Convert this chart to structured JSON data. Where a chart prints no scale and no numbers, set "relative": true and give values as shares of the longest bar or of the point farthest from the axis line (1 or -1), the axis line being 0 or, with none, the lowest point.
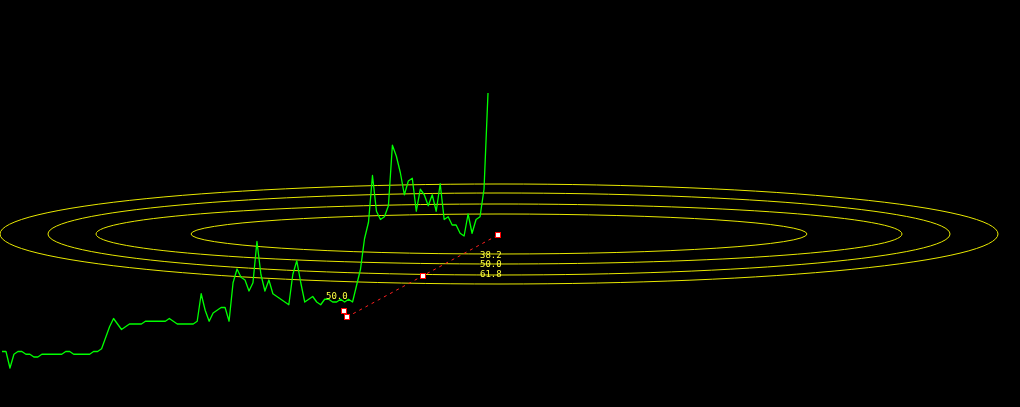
{
  "chart_data": {
    "type": "line",
    "relative": true,
    "categories": [
      null,
      null,
      null,
      null,
      null,
      null,
      null,
      null,
      null,
      null,
      null,
      null,
      null,
      null,
      null,
      null,
      null,
      null,
      null,
      null,
      null,
      null,
      null,
      null,
      null,
      null,
      null,
      null,
      null,
      null,
      null,
      null,
      null,
      null,
      null,
      null,
      null,
      null,
      null,
      null,
      null,
      null,
      null,
      null,
      null,
      null,
      null,
      null,
      null,
      null,
      null,
      null,
      null,
      null,
      null,
      null,
      null,
      null,
      null,
      null,
      null,
      null,
      null,
      null,
      null,
      null,
      null,
      null,
      null,
      null,
      null,
      null,
      null,
      null,
      null,
      null,
      null,
      null,
      null,
      null,
      null,
      null,
      null,
      null,
      null,
      null,
      null,
      null,
      null,
      null,
      null,
      null,
      null,
      null,
      null,
      null,
      null,
      null,
      null,
      null,
      null,
      null,
      null,
      null,
      null,
      null,
      null,
      null,
      null,
      null,
      null,
      null,
      null,
      null,
      null,
      null,
      null,
      null,
      null,
      null,
      null,
      null,
      null
    ],
    "series": [
      {
        "color": "#00ff00",
        "values": [
          0.06,
          0.06,
          0,
          0.05,
          0.06,
          0.06,
          0.05,
          0.05,
          0.04,
          0.04,
          0.05,
          0.05,
          0.05,
          0.05,
          0.05,
          0.05,
          0.06,
          0.06,
          0.05,
          0.05,
          0.05,
          0.05,
          0.05,
          0.06,
          0.06,
          0.07,
          0.11,
          0.15,
          0.18,
          0.16,
          0.14,
          0.15,
          0.16,
          0.16,
          0.16,
          0.16,
          0.17,
          0.17,
          0.17,
          0.17,
          0.17,
          0.17,
          0.18,
          0.17,
          0.16,
          0.16,
          0.16,
          0.16,
          0.16,
          0.17,
          0.27,
          0.21,
          0.17,
          0.2,
          0.21,
          0.22,
          0.22,
          0.17,
          0.31,
          0.36,
          0.33,
          0.32,
          0.28,
          0.31,
          0.46,
          0.34,
          0.28,
          0.32,
          0.27,
          0.26,
          0.25,
          0.24,
          0.23,
          0.34,
          0.39,
          0.31,
          0.24,
          0.25,
          0.26,
          0.24,
          0.23,
          0.25,
          0.25,
          0.24,
          0.24,
          0.25,
          0.24,
          0.25,
          0.24,
          0.3,
          0.36,
          0.47,
          0.53,
          0.7,
          0.57,
          0.54,
          0.55,
          0.59,
          0.81,
          0.77,
          0.71,
          0.63,
          0.68,
          0.69,
          0.57,
          0.65,
          0.63,
          0.59,
          0.63,
          0.57,
          0.67,
          0.54,
          0.55,
          0.52,
          0.52,
          0.49,
          0.48,
          0.56,
          0.49,
          0.54,
          0.55,
          0.65,
          1
        ]
      }
    ],
    "annotations": [
      "50.0",
      "38.2",
      "50.0",
      "61.8"
    ]
  }
}
